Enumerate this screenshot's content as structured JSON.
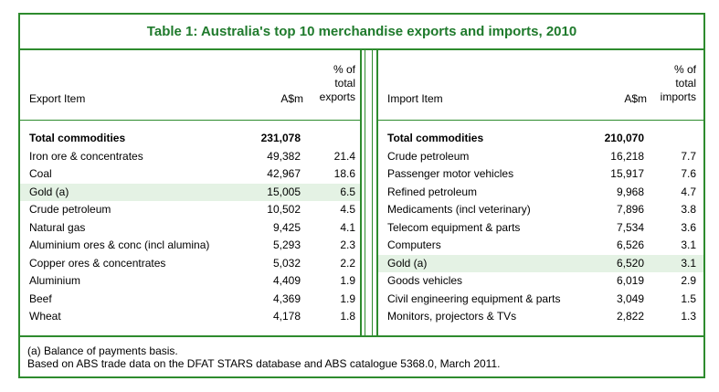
{
  "title": "Table 1: Australia's top 10 merchandise exports and imports, 2010",
  "exports": {
    "headers": {
      "item": "Export Item",
      "value": "A$m",
      "pct_line1": "% of",
      "pct_line2": "total",
      "pct_line3": "exports"
    },
    "total": {
      "item": "Total commodities",
      "value": "231,078",
      "pct": ""
    },
    "rows": [
      {
        "item": "Iron ore & concentrates",
        "value": "49,382",
        "pct": "21.4",
        "highlight": false
      },
      {
        "item": "Coal",
        "value": "42,967",
        "pct": "18.6",
        "highlight": false
      },
      {
        "item": "Gold (a)",
        "value": "15,005",
        "pct": "6.5",
        "highlight": true
      },
      {
        "item": "Crude petroleum",
        "value": "10,502",
        "pct": "4.5",
        "highlight": false
      },
      {
        "item": "Natural gas",
        "value": "9,425",
        "pct": "4.1",
        "highlight": false
      },
      {
        "item": "Aluminium ores & conc (incl alumina)",
        "value": "5,293",
        "pct": "2.3",
        "highlight": false
      },
      {
        "item": "Copper ores & concentrates",
        "value": "5,032",
        "pct": "2.2",
        "highlight": false
      },
      {
        "item": "Aluminium",
        "value": "4,409",
        "pct": "1.9",
        "highlight": false
      },
      {
        "item": "Beef",
        "value": "4,369",
        "pct": "1.9",
        "highlight": false
      },
      {
        "item": "Wheat",
        "value": "4,178",
        "pct": "1.8",
        "highlight": false
      }
    ]
  },
  "imports": {
    "headers": {
      "item": "Import Item",
      "value": "A$m",
      "pct_line1": "% of",
      "pct_line2": "total",
      "pct_line3": "imports"
    },
    "total": {
      "item": "Total commodities",
      "value": "210,070",
      "pct": ""
    },
    "rows": [
      {
        "item": "Crude petroleum",
        "value": "16,218",
        "pct": "7.7",
        "highlight": false
      },
      {
        "item": "Passenger motor vehicles",
        "value": "15,917",
        "pct": "7.6",
        "highlight": false
      },
      {
        "item": "Refined petroleum",
        "value": "9,968",
        "pct": "4.7",
        "highlight": false
      },
      {
        "item": "Medicaments (incl veterinary)",
        "value": "7,896",
        "pct": "3.8",
        "highlight": false
      },
      {
        "item": "Telecom equipment & parts",
        "value": "7,534",
        "pct": "3.6",
        "highlight": false
      },
      {
        "item": "Computers",
        "value": "6,526",
        "pct": "3.1",
        "highlight": false
      },
      {
        "item": "Gold (a)",
        "value": "6,520",
        "pct": "3.1",
        "highlight": true
      },
      {
        "item": "Goods vehicles",
        "value": "6,019",
        "pct": "2.9",
        "highlight": false
      },
      {
        "item": "Civil engineering equipment & parts",
        "value": "3,049",
        "pct": "1.5",
        "highlight": false
      },
      {
        "item": "Monitors, projectors & TVs",
        "value": "2,822",
        "pct": "1.3",
        "highlight": false
      }
    ]
  },
  "notes": {
    "line1": "(a) Balance of payments basis.",
    "line2": "Based on ABS trade data on the DFAT STARS database and ABS catalogue 5368.0, March 2011."
  },
  "colors": {
    "border": "#2e8b2e",
    "title": "#1f7a2c",
    "highlight": "#e4f2e4"
  }
}
